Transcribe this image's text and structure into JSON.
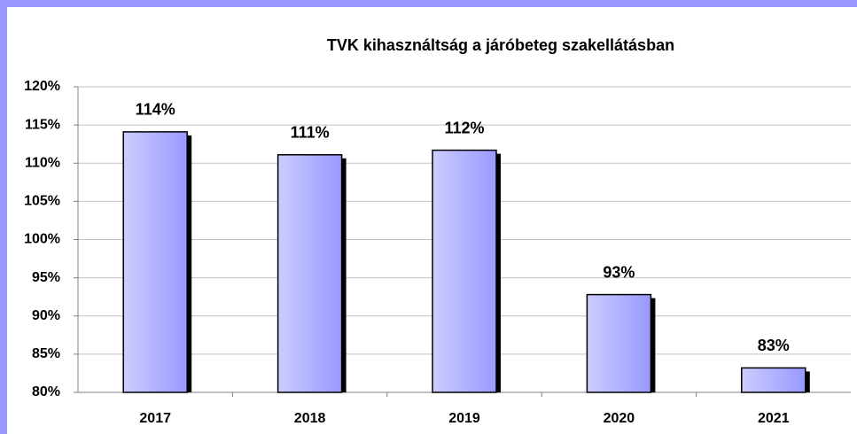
{
  "chart_data": {
    "type": "bar",
    "title": "TVK kihasználtság a járóbeteg szakellátásban",
    "categories": [
      "2017",
      "2018",
      "2019",
      "2020",
      "2021"
    ],
    "values": [
      114.1,
      111.1,
      111.7,
      92.8,
      83.2
    ],
    "value_labels": [
      "114%",
      "111%",
      "112%",
      "93%",
      "83%"
    ],
    "color": "#9999ff",
    "ylim": [
      80,
      120
    ],
    "yticks": [
      {
        "value": 80,
        "label": "80%"
      },
      {
        "value": 85,
        "label": "85%"
      },
      {
        "value": 90,
        "label": "90%"
      },
      {
        "value": 95,
        "label": "95%"
      },
      {
        "value": 100,
        "label": "100%"
      },
      {
        "value": 105,
        "label": "105%"
      },
      {
        "value": 110,
        "label": "110%"
      },
      {
        "value": 115,
        "label": "115%"
      },
      {
        "value": 120,
        "label": "120%"
      }
    ],
    "grid": true
  }
}
